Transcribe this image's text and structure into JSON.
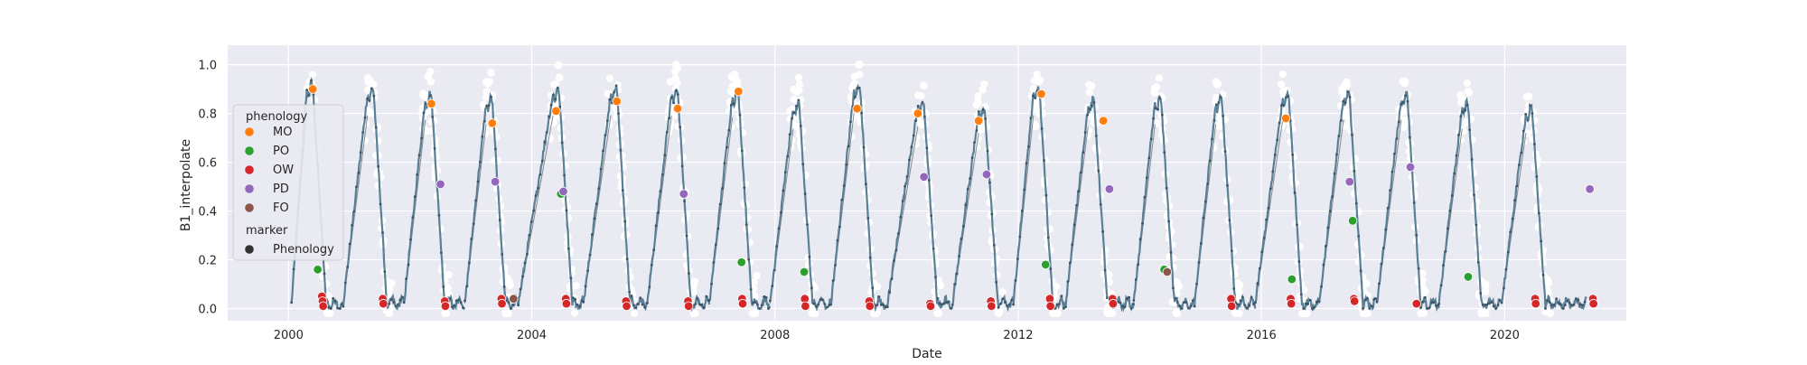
{
  "chart_data": {
    "type": "scatter",
    "xlabel": "Date",
    "ylabel": "B1_interpolate",
    "xlim": [
      "1999-01-01",
      "2022-12-31"
    ],
    "ylim": [
      -0.05,
      1.08
    ],
    "x_ticks": [
      "2000",
      "2004",
      "2008",
      "2012",
      "2016",
      "2020"
    ],
    "y_ticks": [
      "0.0",
      "0.2",
      "0.4",
      "0.6",
      "0.8",
      "1.0"
    ],
    "grid": true,
    "legend_position": "upper-left",
    "legend": {
      "hue_title": "phenology",
      "items": [
        {
          "label": "MO",
          "color": "#ff7f0e"
        },
        {
          "label": "PO",
          "color": "#2ca02c"
        },
        {
          "label": "OW",
          "color": "#d62728"
        },
        {
          "label": "PD",
          "color": "#9467bd"
        },
        {
          "label": "FO",
          "color": "#8c564b"
        }
      ],
      "style_title": "marker",
      "style_items": [
        {
          "label": "Phenology",
          "color": "#333333"
        }
      ]
    },
    "colors": {
      "plot_bg": "#eaeaf2",
      "grid": "#ffffff",
      "curve": "#5b7f95",
      "scatter": "#ffffff",
      "connector": "#8a8a8a"
    },
    "seasons": [
      {
        "start": 2000.05,
        "rise": 2000.3,
        "peak": 0.9
      },
      {
        "start": 2000.9,
        "rise": 2001.3,
        "peak": 0.88
      },
      {
        "start": 2001.9,
        "rise": 2002.25,
        "peak": 0.86
      },
      {
        "start": 2002.9,
        "rise": 2003.25,
        "peak": 0.84
      },
      {
        "start": 2003.78,
        "rise": 2004.35,
        "peak": 0.88
      },
      {
        "start": 2004.85,
        "rise": 2005.3,
        "peak": 0.88
      },
      {
        "start": 2005.9,
        "rise": 2006.3,
        "peak": 0.88
      },
      {
        "start": 2006.92,
        "rise": 2007.3,
        "peak": 0.87
      },
      {
        "start": 2007.92,
        "rise": 2008.3,
        "peak": 0.82
      },
      {
        "start": 2008.92,
        "rise": 2009.3,
        "peak": 0.89
      },
      {
        "start": 2009.85,
        "rise": 2010.35,
        "peak": 0.83
      },
      {
        "start": 2010.92,
        "rise": 2011.35,
        "peak": 0.8
      },
      {
        "start": 2011.92,
        "rise": 2012.25,
        "peak": 0.88
      },
      {
        "start": 2012.78,
        "rise": 2013.15,
        "peak": 0.83
      },
      {
        "start": 2013.9,
        "rise": 2014.25,
        "peak": 0.84
      },
      {
        "start": 2014.9,
        "rise": 2015.25,
        "peak": 0.84
      },
      {
        "start": 2015.9,
        "rise": 2016.35,
        "peak": 0.86
      },
      {
        "start": 2016.95,
        "rise": 2017.35,
        "peak": 0.86
      },
      {
        "start": 2017.9,
        "rise": 2018.3,
        "peak": 0.86
      },
      {
        "start": 2018.92,
        "rise": 2019.3,
        "peak": 0.82
      },
      {
        "start": 2019.95,
        "rise": 2020.35,
        "peak": 0.8
      }
    ],
    "events": [
      {
        "phenology": "MO",
        "x": 2000.4,
        "y": 0.9
      },
      {
        "phenology": "PO",
        "x": 2000.48,
        "y": 0.16
      },
      {
        "phenology": "OW",
        "x": 2000.55,
        "y": 0.05
      },
      {
        "phenology": "OW",
        "x": 2000.56,
        "y": 0.03
      },
      {
        "phenology": "OW",
        "x": 2000.57,
        "y": 0.01
      },
      {
        "phenology": "OW",
        "x": 2001.55,
        "y": 0.04
      },
      {
        "phenology": "OW",
        "x": 2001.56,
        "y": 0.02
      },
      {
        "phenology": "MO",
        "x": 2002.35,
        "y": 0.84
      },
      {
        "phenology": "PD",
        "x": 2002.5,
        "y": 0.51
      },
      {
        "phenology": "OW",
        "x": 2002.57,
        "y": 0.03
      },
      {
        "phenology": "OW",
        "x": 2002.58,
        "y": 0.01
      },
      {
        "phenology": "MO",
        "x": 2003.35,
        "y": 0.76
      },
      {
        "phenology": "PD",
        "x": 2003.4,
        "y": 0.52
      },
      {
        "phenology": "OW",
        "x": 2003.5,
        "y": 0.04
      },
      {
        "phenology": "OW",
        "x": 2003.51,
        "y": 0.02
      },
      {
        "phenology": "FO",
        "x": 2003.7,
        "y": 0.04
      },
      {
        "phenology": "MO",
        "x": 2004.4,
        "y": 0.81
      },
      {
        "phenology": "PO",
        "x": 2004.48,
        "y": 0.47
      },
      {
        "phenology": "PD",
        "x": 2004.52,
        "y": 0.48
      },
      {
        "phenology": "OW",
        "x": 2004.56,
        "y": 0.04
      },
      {
        "phenology": "OW",
        "x": 2004.57,
        "y": 0.02
      },
      {
        "phenology": "MO",
        "x": 2005.4,
        "y": 0.85
      },
      {
        "phenology": "OW",
        "x": 2005.55,
        "y": 0.03
      },
      {
        "phenology": "OW",
        "x": 2005.56,
        "y": 0.01
      },
      {
        "phenology": "MO",
        "x": 2006.4,
        "y": 0.82
      },
      {
        "phenology": "PD",
        "x": 2006.5,
        "y": 0.47
      },
      {
        "phenology": "OW",
        "x": 2006.57,
        "y": 0.03
      },
      {
        "phenology": "OW",
        "x": 2006.58,
        "y": 0.01
      },
      {
        "phenology": "MO",
        "x": 2007.4,
        "y": 0.89
      },
      {
        "phenology": "PO",
        "x": 2007.45,
        "y": 0.19
      },
      {
        "phenology": "OW",
        "x": 2007.46,
        "y": 0.04
      },
      {
        "phenology": "OW",
        "x": 2007.47,
        "y": 0.02
      },
      {
        "phenology": "PO",
        "x": 2008.48,
        "y": 0.15
      },
      {
        "phenology": "OW",
        "x": 2008.49,
        "y": 0.04
      },
      {
        "phenology": "OW",
        "x": 2008.5,
        "y": 0.01
      },
      {
        "phenology": "MO",
        "x": 2009.35,
        "y": 0.82
      },
      {
        "phenology": "OW",
        "x": 2009.55,
        "y": 0.03
      },
      {
        "phenology": "OW",
        "x": 2009.56,
        "y": 0.01
      },
      {
        "phenology": "MO",
        "x": 2010.35,
        "y": 0.8
      },
      {
        "phenology": "PD",
        "x": 2010.45,
        "y": 0.54
      },
      {
        "phenology": "OW",
        "x": 2010.55,
        "y": 0.02
      },
      {
        "phenology": "OW",
        "x": 2010.56,
        "y": 0.01
      },
      {
        "phenology": "MO",
        "x": 2011.35,
        "y": 0.77
      },
      {
        "phenology": "PD",
        "x": 2011.48,
        "y": 0.55
      },
      {
        "phenology": "OW",
        "x": 2011.55,
        "y": 0.03
      },
      {
        "phenology": "OW",
        "x": 2011.56,
        "y": 0.01
      },
      {
        "phenology": "MO",
        "x": 2012.38,
        "y": 0.88
      },
      {
        "phenology": "PO",
        "x": 2012.45,
        "y": 0.18
      },
      {
        "phenology": "OW",
        "x": 2012.52,
        "y": 0.04
      },
      {
        "phenology": "OW",
        "x": 2012.53,
        "y": 0.01
      },
      {
        "phenology": "MO",
        "x": 2013.4,
        "y": 0.77
      },
      {
        "phenology": "PD",
        "x": 2013.5,
        "y": 0.49
      },
      {
        "phenology": "OW",
        "x": 2013.55,
        "y": 0.04
      },
      {
        "phenology": "OW",
        "x": 2013.56,
        "y": 0.02
      },
      {
        "phenology": "PO",
        "x": 2014.4,
        "y": 0.16
      },
      {
        "phenology": "FO",
        "x": 2014.45,
        "y": 0.15
      },
      {
        "phenology": "OW",
        "x": 2015.5,
        "y": 0.04
      },
      {
        "phenology": "OW",
        "x": 2015.51,
        "y": 0.01
      },
      {
        "phenology": "MO",
        "x": 2016.4,
        "y": 0.78
      },
      {
        "phenology": "PO",
        "x": 2016.5,
        "y": 0.12
      },
      {
        "phenology": "OW",
        "x": 2016.48,
        "y": 0.04
      },
      {
        "phenology": "OW",
        "x": 2016.49,
        "y": 0.02
      },
      {
        "phenology": "PD",
        "x": 2017.45,
        "y": 0.52
      },
      {
        "phenology": "PO",
        "x": 2017.5,
        "y": 0.36
      },
      {
        "phenology": "OW",
        "x": 2017.52,
        "y": 0.04
      },
      {
        "phenology": "OW",
        "x": 2017.53,
        "y": 0.03
      },
      {
        "phenology": "PD",
        "x": 2018.45,
        "y": 0.58
      },
      {
        "phenology": "OW",
        "x": 2018.55,
        "y": 0.02
      },
      {
        "phenology": "PO",
        "x": 2019.4,
        "y": 0.13
      },
      {
        "phenology": "OW",
        "x": 2020.5,
        "y": 0.04
      },
      {
        "phenology": "OW",
        "x": 2020.51,
        "y": 0.02
      },
      {
        "phenology": "PD",
        "x": 2021.4,
        "y": 0.49
      },
      {
        "phenology": "OW",
        "x": 2021.45,
        "y": 0.04
      },
      {
        "phenology": "OW",
        "x": 2021.46,
        "y": 0.02
      }
    ]
  }
}
